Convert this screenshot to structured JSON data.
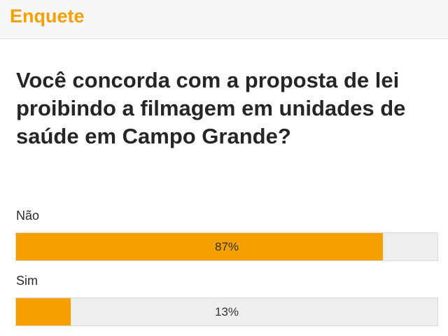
{
  "header": {
    "title": "Enquete"
  },
  "poll": {
    "question": "Você concorda com a proposta de lei proibindo a filmagem em unidades de saúde em Campo Grande?",
    "options": [
      {
        "label": "Não",
        "percent_text": "87%",
        "percent": 87
      },
      {
        "label": "Sim",
        "percent_text": "13%",
        "percent": 13
      }
    ]
  },
  "colors": {
    "accent": "#f5a000",
    "bar_track": "#eeeeee"
  }
}
